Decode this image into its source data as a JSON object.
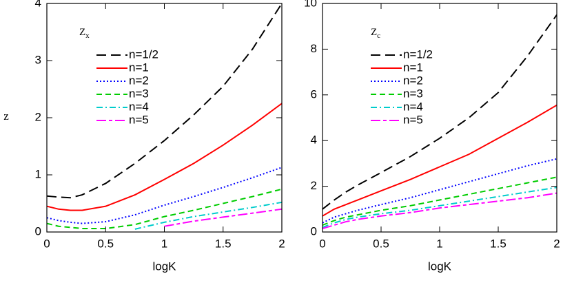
{
  "chart_data": [
    {
      "type": "line",
      "x_label": "logK",
      "y_label": "z",
      "legend_title": {
        "main": "Z",
        "sub": "x"
      },
      "x": [
        0,
        0.1,
        0.2,
        0.3,
        0.5,
        0.75,
        1,
        1.25,
        1.5,
        1.75,
        2
      ],
      "xlim": [
        0,
        2
      ],
      "xticks": [
        0,
        0.5,
        1,
        1.5,
        2
      ],
      "ylim": [
        0,
        4
      ],
      "yticks": [
        0,
        1,
        2,
        3,
        4
      ],
      "series": [
        {
          "name": "n=1/2",
          "color": "#000000",
          "linestyle": "long-dash",
          "values": [
            0.63,
            0.61,
            0.6,
            0.65,
            0.85,
            1.2,
            1.6,
            2.05,
            2.55,
            3.2,
            4.0
          ]
        },
        {
          "name": "n=1",
          "color": "#ff0000",
          "linestyle": "solid",
          "values": [
            0.45,
            0.4,
            0.38,
            0.38,
            0.45,
            0.65,
            0.92,
            1.2,
            1.52,
            1.87,
            2.25
          ]
        },
        {
          "name": "n=2",
          "color": "#0000ff",
          "linestyle": "dotted",
          "values": [
            0.25,
            0.2,
            0.17,
            0.15,
            0.18,
            0.3,
            0.47,
            0.62,
            0.78,
            0.95,
            1.13
          ]
        },
        {
          "name": "n=3",
          "color": "#00cc00",
          "linestyle": "dashed",
          "values": [
            0.15,
            0.1,
            0.08,
            0.06,
            0.06,
            0.13,
            0.27,
            0.38,
            0.5,
            0.62,
            0.75
          ]
        },
        {
          "name": "n=4",
          "color": "#00cccc",
          "linestyle": "dash-dot",
          "values": [
            null,
            null,
            null,
            null,
            null,
            0.05,
            0.17,
            0.27,
            0.35,
            0.43,
            0.52
          ]
        },
        {
          "name": "n=5",
          "color": "#ff00ff",
          "linestyle": "long-short",
          "values": [
            null,
            null,
            null,
            null,
            null,
            null,
            0.1,
            0.19,
            0.26,
            0.33,
            0.4
          ]
        }
      ]
    },
    {
      "type": "line",
      "x_label": "logK",
      "legend_title": {
        "main": "Z",
        "sub": "c"
      },
      "x": [
        0,
        0.1,
        0.2,
        0.3,
        0.5,
        0.75,
        1,
        1.25,
        1.5,
        1.75,
        2
      ],
      "xlim": [
        0,
        2
      ],
      "xticks": [
        0,
        0.5,
        1,
        1.5,
        2
      ],
      "ylim": [
        0,
        10
      ],
      "yticks": [
        0,
        2,
        4,
        6,
        8,
        10
      ],
      "series": [
        {
          "name": "n=1/2",
          "color": "#000000",
          "linestyle": "long-dash",
          "values": [
            1.0,
            1.4,
            1.75,
            2.05,
            2.6,
            3.3,
            4.1,
            5.0,
            6.1,
            7.7,
            9.5
          ]
        },
        {
          "name": "n=1",
          "color": "#ff0000",
          "linestyle": "solid",
          "values": [
            0.7,
            1.0,
            1.2,
            1.4,
            1.8,
            2.3,
            2.85,
            3.4,
            4.1,
            4.8,
            5.55
          ]
        },
        {
          "name": "n=2",
          "color": "#0000ff",
          "linestyle": "dotted",
          "values": [
            0.4,
            0.65,
            0.8,
            0.95,
            1.2,
            1.5,
            1.85,
            2.2,
            2.55,
            2.9,
            3.2
          ]
        },
        {
          "name": "n=3",
          "color": "#00cc00",
          "linestyle": "dashed",
          "values": [
            0.3,
            0.5,
            0.65,
            0.75,
            0.95,
            1.15,
            1.4,
            1.65,
            1.9,
            2.15,
            2.4
          ]
        },
        {
          "name": "n=4",
          "color": "#00cccc",
          "linestyle": "dash-dot",
          "values": [
            0.2,
            0.4,
            0.55,
            0.65,
            0.8,
            0.95,
            1.15,
            1.35,
            1.55,
            1.75,
            1.95
          ]
        },
        {
          "name": "n=5",
          "color": "#ff00ff",
          "linestyle": "long-short",
          "values": [
            0.15,
            0.3,
            0.45,
            0.55,
            0.7,
            0.85,
            1.05,
            1.2,
            1.35,
            1.5,
            1.7
          ]
        }
      ]
    }
  ]
}
